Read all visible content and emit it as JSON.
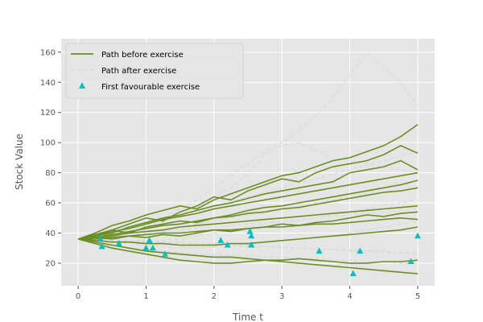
{
  "chart_data": {
    "type": "line",
    "title": "",
    "xlabel": "Time t",
    "ylabel": "Stock Value",
    "xlim": [
      -0.25,
      5.25
    ],
    "ylim": [
      5,
      169
    ],
    "xticks": [
      0,
      1,
      2,
      3,
      4,
      5
    ],
    "yticks": [
      20,
      40,
      60,
      80,
      100,
      120,
      140,
      160
    ],
    "grid": true,
    "legend_position": "top-left",
    "colors": {
      "before": "#6b8e23",
      "after": "#dcdcdc",
      "marker": "#00bfbf",
      "plot_background": "#e5e5e5",
      "grid": "#ffffff"
    },
    "legend": [
      {
        "label": "Path before exercise",
        "style": "solid-line"
      },
      {
        "label": "Path after exercise",
        "style": "dashed-line"
      },
      {
        "label": "First favourable exercise",
        "style": "triangle-marker"
      }
    ],
    "paths_before_exercise": [
      {
        "x": [
          0,
          0.25,
          0.5,
          0.75,
          1.0,
          1.25,
          1.5,
          1.75,
          2.0,
          2.25,
          2.5,
          2.75,
          3.0,
          3.25,
          3.5,
          3.75,
          4.0,
          4.25,
          4.5,
          4.75,
          5.0
        ],
        "y": [
          36,
          40,
          45,
          48,
          52,
          55,
          58,
          56,
          62,
          66,
          70,
          74,
          78,
          80,
          84,
          88,
          90,
          94,
          98,
          104,
          112
        ]
      },
      {
        "x": [
          0,
          0.25,
          0.5,
          0.75,
          1.0,
          1.25,
          1.5,
          1.75,
          2.0,
          2.25,
          2.5,
          2.75,
          3.0,
          3.25,
          3.5,
          3.75,
          4.0,
          4.25,
          4.5,
          4.75,
          5.0
        ],
        "y": [
          36,
          39,
          42,
          46,
          50,
          48,
          54,
          58,
          64,
          62,
          68,
          72,
          76,
          74,
          80,
          84,
          86,
          88,
          92,
          98,
          93
        ]
      },
      {
        "x": [
          0,
          0.25,
          0.5,
          0.75,
          1.0,
          1.25,
          1.5,
          1.75,
          2.0,
          2.25,
          2.5,
          2.75,
          3.0,
          3.25,
          3.5,
          3.75,
          4.0,
          4.25,
          4.5,
          4.75,
          5.0
        ],
        "y": [
          36,
          38,
          40,
          44,
          47,
          50,
          52,
          55,
          58,
          60,
          63,
          66,
          68,
          70,
          72,
          74,
          80,
          82,
          84,
          88,
          82
        ]
      },
      {
        "x": [
          0,
          0.25,
          0.5,
          0.75,
          1.0,
          1.25,
          1.5,
          1.75,
          2.0,
          2.25,
          2.5,
          2.75,
          3.0,
          3.25,
          3.5,
          3.75,
          4.0,
          4.25,
          4.5,
          4.75,
          5.0
        ],
        "y": [
          36,
          38,
          41,
          43,
          46,
          49,
          51,
          53,
          56,
          58,
          60,
          62,
          64,
          66,
          68,
          70,
          72,
          74,
          76,
          78,
          80
        ]
      },
      {
        "x": [
          0,
          0.25,
          0.5,
          0.75,
          1.0,
          1.25,
          1.5,
          1.75,
          2.0,
          2.25,
          2.5,
          2.75,
          3.0,
          3.25,
          3.5,
          3.75,
          4.0,
          4.25,
          4.5,
          4.75,
          5.0
        ],
        "y": [
          36,
          37,
          39,
          41,
          43,
          45,
          46,
          48,
          50,
          51,
          53,
          54,
          56,
          57,
          59,
          61,
          63,
          65,
          67,
          68,
          70
        ]
      },
      {
        "x": [
          0,
          0.25,
          0.5,
          0.75,
          1.0,
          1.25,
          1.5,
          1.75,
          2.0,
          2.25,
          2.5,
          2.75,
          3.0,
          3.25,
          3.5,
          3.75,
          4.0,
          4.25,
          4.5,
          4.75,
          5.0
        ],
        "y": [
          36,
          37,
          38,
          40,
          41,
          42,
          44,
          45,
          46,
          47,
          48,
          49,
          50,
          51,
          52,
          53,
          54,
          55,
          56,
          57,
          58
        ]
      },
      {
        "x": [
          0,
          0.25,
          0.5,
          0.75,
          1.0,
          1.25,
          1.5,
          1.75,
          2.0,
          2.25,
          2.5,
          2.75,
          3.0,
          3.25,
          3.5,
          3.75,
          4.0,
          4.25,
          4.5,
          4.75,
          5.0
        ],
        "y": [
          36,
          36,
          37,
          38,
          39,
          40,
          40,
          41,
          42,
          42,
          43,
          44,
          44,
          45,
          46,
          46,
          47,
          48,
          49,
          50,
          49
        ]
      },
      {
        "x": [
          0,
          0.25,
          0.5,
          0.75,
          1.0,
          1.25,
          1.5,
          1.75,
          2.0,
          2.25,
          2.5,
          2.75,
          3.0,
          3.25,
          3.5,
          3.75,
          4.0,
          4.25,
          4.5,
          4.75,
          5.0
        ],
        "y": [
          36,
          35,
          34,
          34,
          33,
          33,
          32,
          32,
          32,
          33,
          33,
          34,
          35,
          36,
          37,
          38,
          39,
          40,
          41,
          42,
          44
        ]
      },
      {
        "x": [
          0,
          0.25,
          0.5,
          0.75,
          1.0,
          1.25,
          1.5,
          1.75,
          2.0,
          2.25,
          2.5,
          2.75,
          3.0,
          3.25,
          3.5,
          3.75,
          4.0,
          4.25,
          4.5,
          4.75,
          5.0
        ],
        "y": [
          36,
          33,
          30,
          28,
          26,
          24,
          22,
          21,
          20,
          20,
          21,
          22,
          22,
          23,
          22,
          21,
          20,
          20,
          21,
          21,
          22
        ]
      },
      {
        "x": [
          0,
          0.25,
          0.5,
          0.75,
          1.0,
          1.25,
          1.5,
          1.75,
          2.0,
          2.25,
          2.5,
          2.75,
          3.0,
          3.25,
          3.5,
          3.75,
          4.0,
          4.25,
          4.5,
          4.75,
          5.0
        ],
        "y": [
          36,
          34,
          32,
          30,
          28,
          27,
          26,
          25,
          24,
          24,
          23,
          22,
          21,
          20,
          19,
          18,
          17,
          16,
          15,
          14,
          13
        ]
      },
      {
        "x": [
          0,
          0.25,
          0.5,
          0.75,
          1.0,
          1.25,
          1.5,
          1.75,
          2.0,
          2.25,
          2.5,
          2.75,
          3.0,
          3.25,
          3.5,
          3.75,
          4.0,
          4.25,
          4.5,
          4.75,
          5.0
        ],
        "y": [
          36,
          37,
          36,
          38,
          37,
          39,
          38,
          40,
          42,
          41,
          43,
          44,
          46,
          45,
          47,
          48,
          50,
          52,
          51,
          53,
          54
        ]
      },
      {
        "x": [
          0,
          0.25,
          0.5,
          0.75,
          1.0,
          1.25,
          1.5,
          1.75,
          2.0,
          2.25,
          2.5,
          2.75,
          3.0,
          3.25,
          3.5,
          3.75,
          4.0,
          4.25,
          4.5,
          4.75,
          5.0
        ],
        "y": [
          36,
          38,
          42,
          40,
          44,
          46,
          48,
          47,
          50,
          52,
          55,
          57,
          58,
          60,
          62,
          64,
          66,
          68,
          70,
          72,
          75
        ]
      }
    ],
    "paths_after_exercise": [
      {
        "x": [
          0,
          0.25,
          0.5,
          0.75,
          1.0,
          1.25,
          1.5,
          1.75,
          2.0,
          2.25,
          2.5,
          2.75,
          3.0,
          3.25,
          3.5,
          3.75,
          4.0,
          4.25,
          4.5,
          4.75,
          5.0
        ],
        "y": [
          36,
          38,
          40,
          42,
          45,
          50,
          56,
          62,
          70,
          78,
          86,
          94,
          100,
          108,
          118,
          130,
          145,
          160,
          150,
          140,
          125
        ]
      },
      {
        "x": [
          0,
          0.25,
          0.5,
          0.75,
          1.0,
          1.25,
          1.5,
          1.75,
          2.0,
          2.25,
          2.5,
          2.75,
          3.0,
          3.25,
          3.5,
          3.75,
          4.0,
          4.25,
          4.5,
          4.75,
          5.0
        ],
        "y": [
          36,
          37,
          39,
          42,
          44,
          48,
          52,
          58,
          64,
          70,
          80,
          92,
          98,
          100,
          95,
          90,
          88,
          86,
          84,
          82,
          80
        ]
      },
      {
        "x": [
          0,
          0.25,
          0.5,
          0.75,
          1.0,
          1.25,
          1.5,
          1.75,
          2.0,
          2.25,
          2.5,
          2.75,
          3.0,
          3.25,
          3.5,
          3.75,
          4.0,
          4.25,
          4.5,
          4.75,
          5.0
        ],
        "y": [
          36,
          36,
          37,
          38,
          40,
          42,
          44,
          46,
          48,
          50,
          52,
          54,
          56,
          58,
          60,
          62,
          64,
          66,
          70,
          74,
          68
        ]
      },
      {
        "x": [
          0,
          0.25,
          0.5,
          0.75,
          1.0,
          1.25,
          1.5,
          1.75,
          2.0,
          2.25,
          2.5,
          2.75,
          3.0,
          3.25,
          3.5,
          3.75,
          4.0,
          4.25,
          4.5,
          4.75,
          5.0
        ],
        "y": [
          36,
          35,
          35,
          34,
          34,
          35,
          36,
          38,
          40,
          42,
          44,
          46,
          47,
          48,
          50,
          52,
          54,
          56,
          58,
          60,
          62
        ]
      },
      {
        "x": [
          0,
          0.25,
          0.5,
          0.75,
          1.0,
          1.25,
          1.5,
          1.75,
          2.0,
          2.25,
          2.5,
          2.75,
          3.0,
          3.25,
          3.5,
          3.75,
          4.0,
          4.25,
          4.5,
          4.75,
          5.0
        ],
        "y": [
          36,
          35,
          34,
          33,
          32,
          31,
          30,
          30,
          31,
          32,
          33,
          34,
          35,
          36,
          37,
          38,
          40,
          42,
          44,
          46,
          48
        ]
      },
      {
        "x": [
          0,
          0.25,
          0.5,
          0.75,
          1.0,
          1.25,
          1.5,
          1.75,
          2.0,
          2.25,
          2.5,
          2.75,
          3.0,
          3.25,
          3.5,
          3.75,
          4.0,
          4.25,
          4.5,
          4.75,
          5.0
        ],
        "y": [
          36,
          34,
          32,
          30,
          29,
          28,
          27,
          26,
          26,
          25,
          25,
          24,
          24,
          23,
          23,
          22,
          22,
          21,
          21,
          20,
          20
        ]
      },
      {
        "x": [
          0,
          0.25,
          0.5,
          0.75,
          1.0,
          1.25,
          1.5,
          1.75,
          2.0,
          2.25,
          2.5,
          2.75,
          3.0,
          3.25,
          3.5,
          3.75,
          4.0,
          4.25,
          4.5,
          4.75,
          5.0
        ],
        "y": [
          36,
          37,
          38,
          39,
          40,
          41,
          42,
          43,
          44,
          45,
          46,
          47,
          48,
          49,
          50,
          51,
          52,
          53,
          54,
          55,
          56
        ]
      },
      {
        "x": [
          0,
          0.25,
          0.5,
          0.75,
          1.0,
          1.25,
          1.5,
          1.75,
          2.0,
          2.25,
          2.5,
          2.75,
          3.0,
          3.25,
          3.5,
          3.75,
          4.0,
          4.25,
          4.5,
          4.75,
          5.0
        ],
        "y": [
          36,
          36,
          36,
          35,
          35,
          34,
          34,
          33,
          33,
          32,
          32,
          31,
          31,
          30,
          30,
          29,
          29,
          28,
          28,
          27,
          27
        ]
      },
      {
        "x": [
          0,
          0.25,
          0.5,
          0.75,
          1.0,
          1.25,
          1.5,
          1.75,
          2.0,
          2.25,
          2.5,
          2.75,
          3.0,
          3.25,
          3.5,
          3.75,
          4.0,
          4.25,
          4.5,
          4.75,
          5.0
        ],
        "y": [
          36,
          38,
          40,
          43,
          46,
          49,
          52,
          55,
          58,
          61,
          64,
          67,
          70,
          73,
          76,
          79,
          82,
          85,
          88,
          91,
          94
        ]
      },
      {
        "x": [
          0,
          0.25,
          0.5,
          0.75,
          1.0,
          1.25,
          1.5,
          1.75,
          2.0,
          2.25,
          2.5,
          2.75,
          3.0,
          3.25,
          3.5,
          3.75,
          4.0,
          4.25,
          4.5,
          4.75,
          5.0
        ],
        "y": [
          36,
          36,
          35,
          35,
          34,
          34,
          33,
          33,
          32,
          32,
          31,
          31,
          30,
          30,
          29,
          29,
          28,
          28,
          27,
          27,
          26
        ]
      }
    ],
    "first_favourable_exercise": {
      "x": [
        0.33,
        0.35,
        0.6,
        1.0,
        1.05,
        1.1,
        1.28,
        2.1,
        2.2,
        2.53,
        2.55,
        2.55,
        3.55,
        4.05,
        4.15,
        4.9,
        5.0
      ],
      "y": [
        36,
        31,
        33,
        30,
        35,
        30,
        26,
        35,
        32,
        41,
        38,
        32,
        28,
        13,
        28,
        21,
        38
      ]
    }
  }
}
